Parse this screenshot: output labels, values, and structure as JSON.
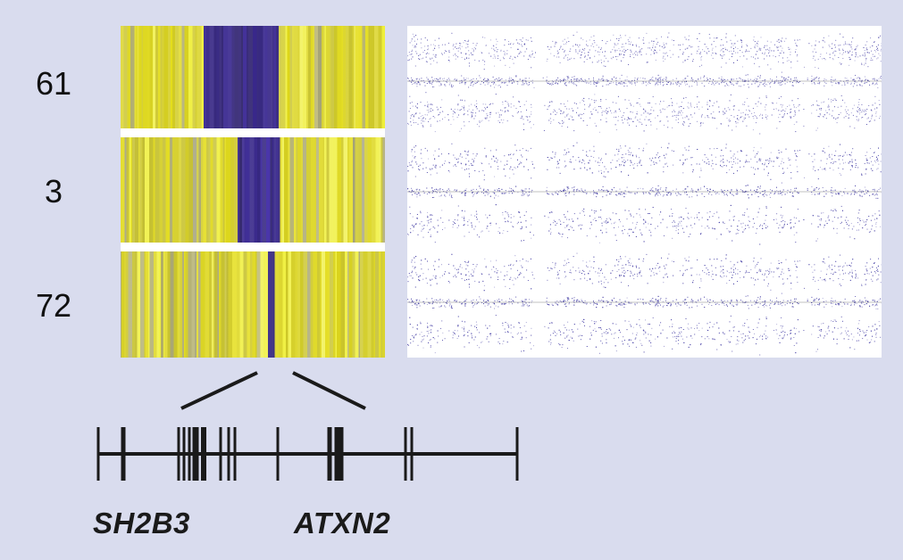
{
  "rows": [
    {
      "label": "61"
    },
    {
      "label": "3"
    },
    {
      "label": "72"
    }
  ],
  "genes": [
    {
      "label": "SH2B3"
    },
    {
      "label": "ATXN2"
    }
  ],
  "colors": {
    "background": "#d9dcee",
    "heat_low": "#d3cc35",
    "heat_deletion": "#4c3ea0",
    "scatter_dot": "#4b45a8"
  }
}
